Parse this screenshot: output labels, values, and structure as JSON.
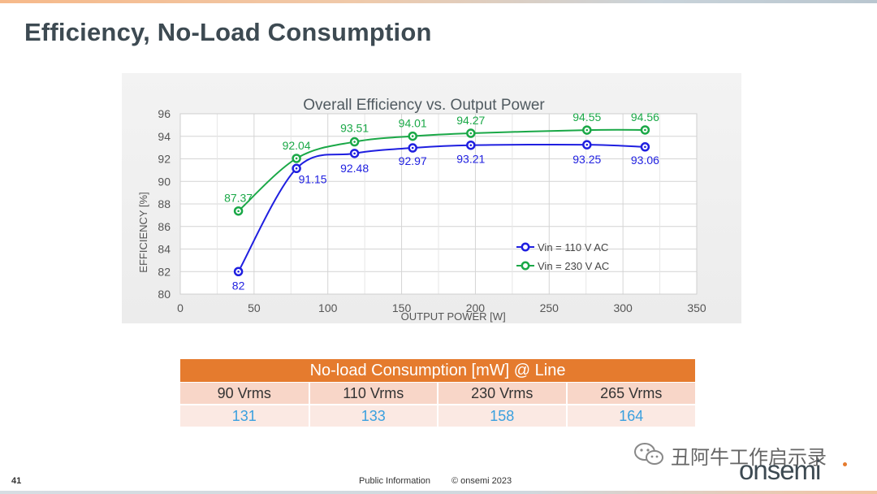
{
  "slide": {
    "title": "Efficiency, No-Load Consumption",
    "page_number": "41",
    "footer_info": "Public Information",
    "footer_copyright": "© onsemi 2023",
    "watermark": "丑阿牛工作启示录",
    "logo": "onsemi",
    "accent_color": "#e57b2e"
  },
  "chart_data": {
    "type": "line",
    "title": "Overall Efficiency vs. Output Power",
    "xlabel": "OUTPUT POWER [W]",
    "ylabel": "EFFICIENCY [%]",
    "xlim": [
      0,
      350
    ],
    "ylim": [
      80,
      96
    ],
    "xticks": [
      0,
      50,
      100,
      150,
      200,
      250,
      300,
      350
    ],
    "yticks": [
      80,
      82,
      84,
      86,
      88,
      90,
      92,
      94,
      96
    ],
    "grid": true,
    "legend_position": "lower-right",
    "series": [
      {
        "name": "Vin = 110 V AC",
        "color": "#1f1fe0",
        "x": [
          39.4,
          78.75,
          118.1,
          157.5,
          196.9,
          275.6,
          315
        ],
        "y": [
          82,
          91.15,
          92.48,
          92.97,
          93.21,
          93.25,
          93.06
        ],
        "labels": [
          "82",
          "91.15",
          "92.48",
          "92.97",
          "93.21",
          "93.25",
          "93.06"
        ]
      },
      {
        "name": "Vin = 230 V AC",
        "color": "#1aa847",
        "x": [
          39.4,
          78.75,
          118.1,
          157.5,
          196.9,
          275.6,
          315
        ],
        "y": [
          87.37,
          92.04,
          93.51,
          94.01,
          94.27,
          94.55,
          94.56
        ],
        "labels": [
          "87.37",
          "92.04",
          "93.51",
          "94.01",
          "94.27",
          "94.55",
          "94.56"
        ]
      }
    ]
  },
  "no_load_table": {
    "title": "No-load Consumption [mW] @ Line",
    "columns": [
      "90 Vrms",
      "110 Vrms",
      "230 Vrms",
      "265 Vrms"
    ],
    "values": [
      "131",
      "133",
      "158",
      "164"
    ]
  }
}
